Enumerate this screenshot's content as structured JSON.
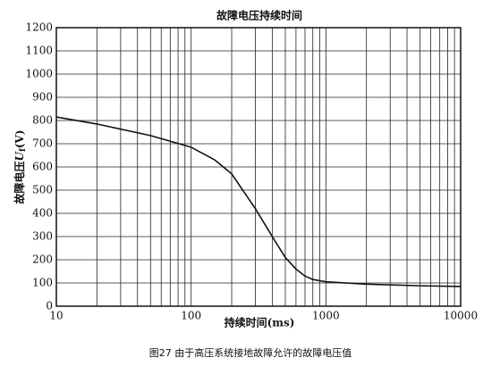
{
  "chart_data": {
    "type": "line",
    "title": "故障电压持续时间",
    "ylabel": {
      "text": "故障电压",
      "symbol": "U",
      "subscript": "f",
      "unit": "(V)"
    },
    "xlabel": "持续时间(ms)",
    "caption": "图27 由于高压系统接地故障允许的故障电压值",
    "x_log": true,
    "xlim": [
      10,
      10000
    ],
    "xticks": [
      10,
      100,
      1000,
      10000
    ],
    "x_minor_ticks": [
      20,
      30,
      40,
      50,
      60,
      70,
      80,
      90,
      200,
      300,
      400,
      500,
      600,
      700,
      800,
      900,
      2000,
      3000,
      4000,
      5000,
      6000,
      7000,
      8000,
      9000
    ],
    "ylim": [
      0,
      1200
    ],
    "yticks": [
      0,
      100,
      200,
      300,
      400,
      500,
      600,
      700,
      800,
      900,
      1000,
      1100,
      1200
    ],
    "grid": true,
    "series": [
      {
        "color": "#111111",
        "x": [
          10,
          20,
          50,
          100,
          150,
          200,
          300,
          400,
          500,
          600,
          700,
          800,
          1000,
          2000,
          5000,
          10000
        ],
        "values": [
          815,
          785,
          735,
          685,
          630,
          570,
          420,
          300,
          210,
          160,
          130,
          115,
          105,
          95,
          88,
          85
        ]
      }
    ]
  }
}
